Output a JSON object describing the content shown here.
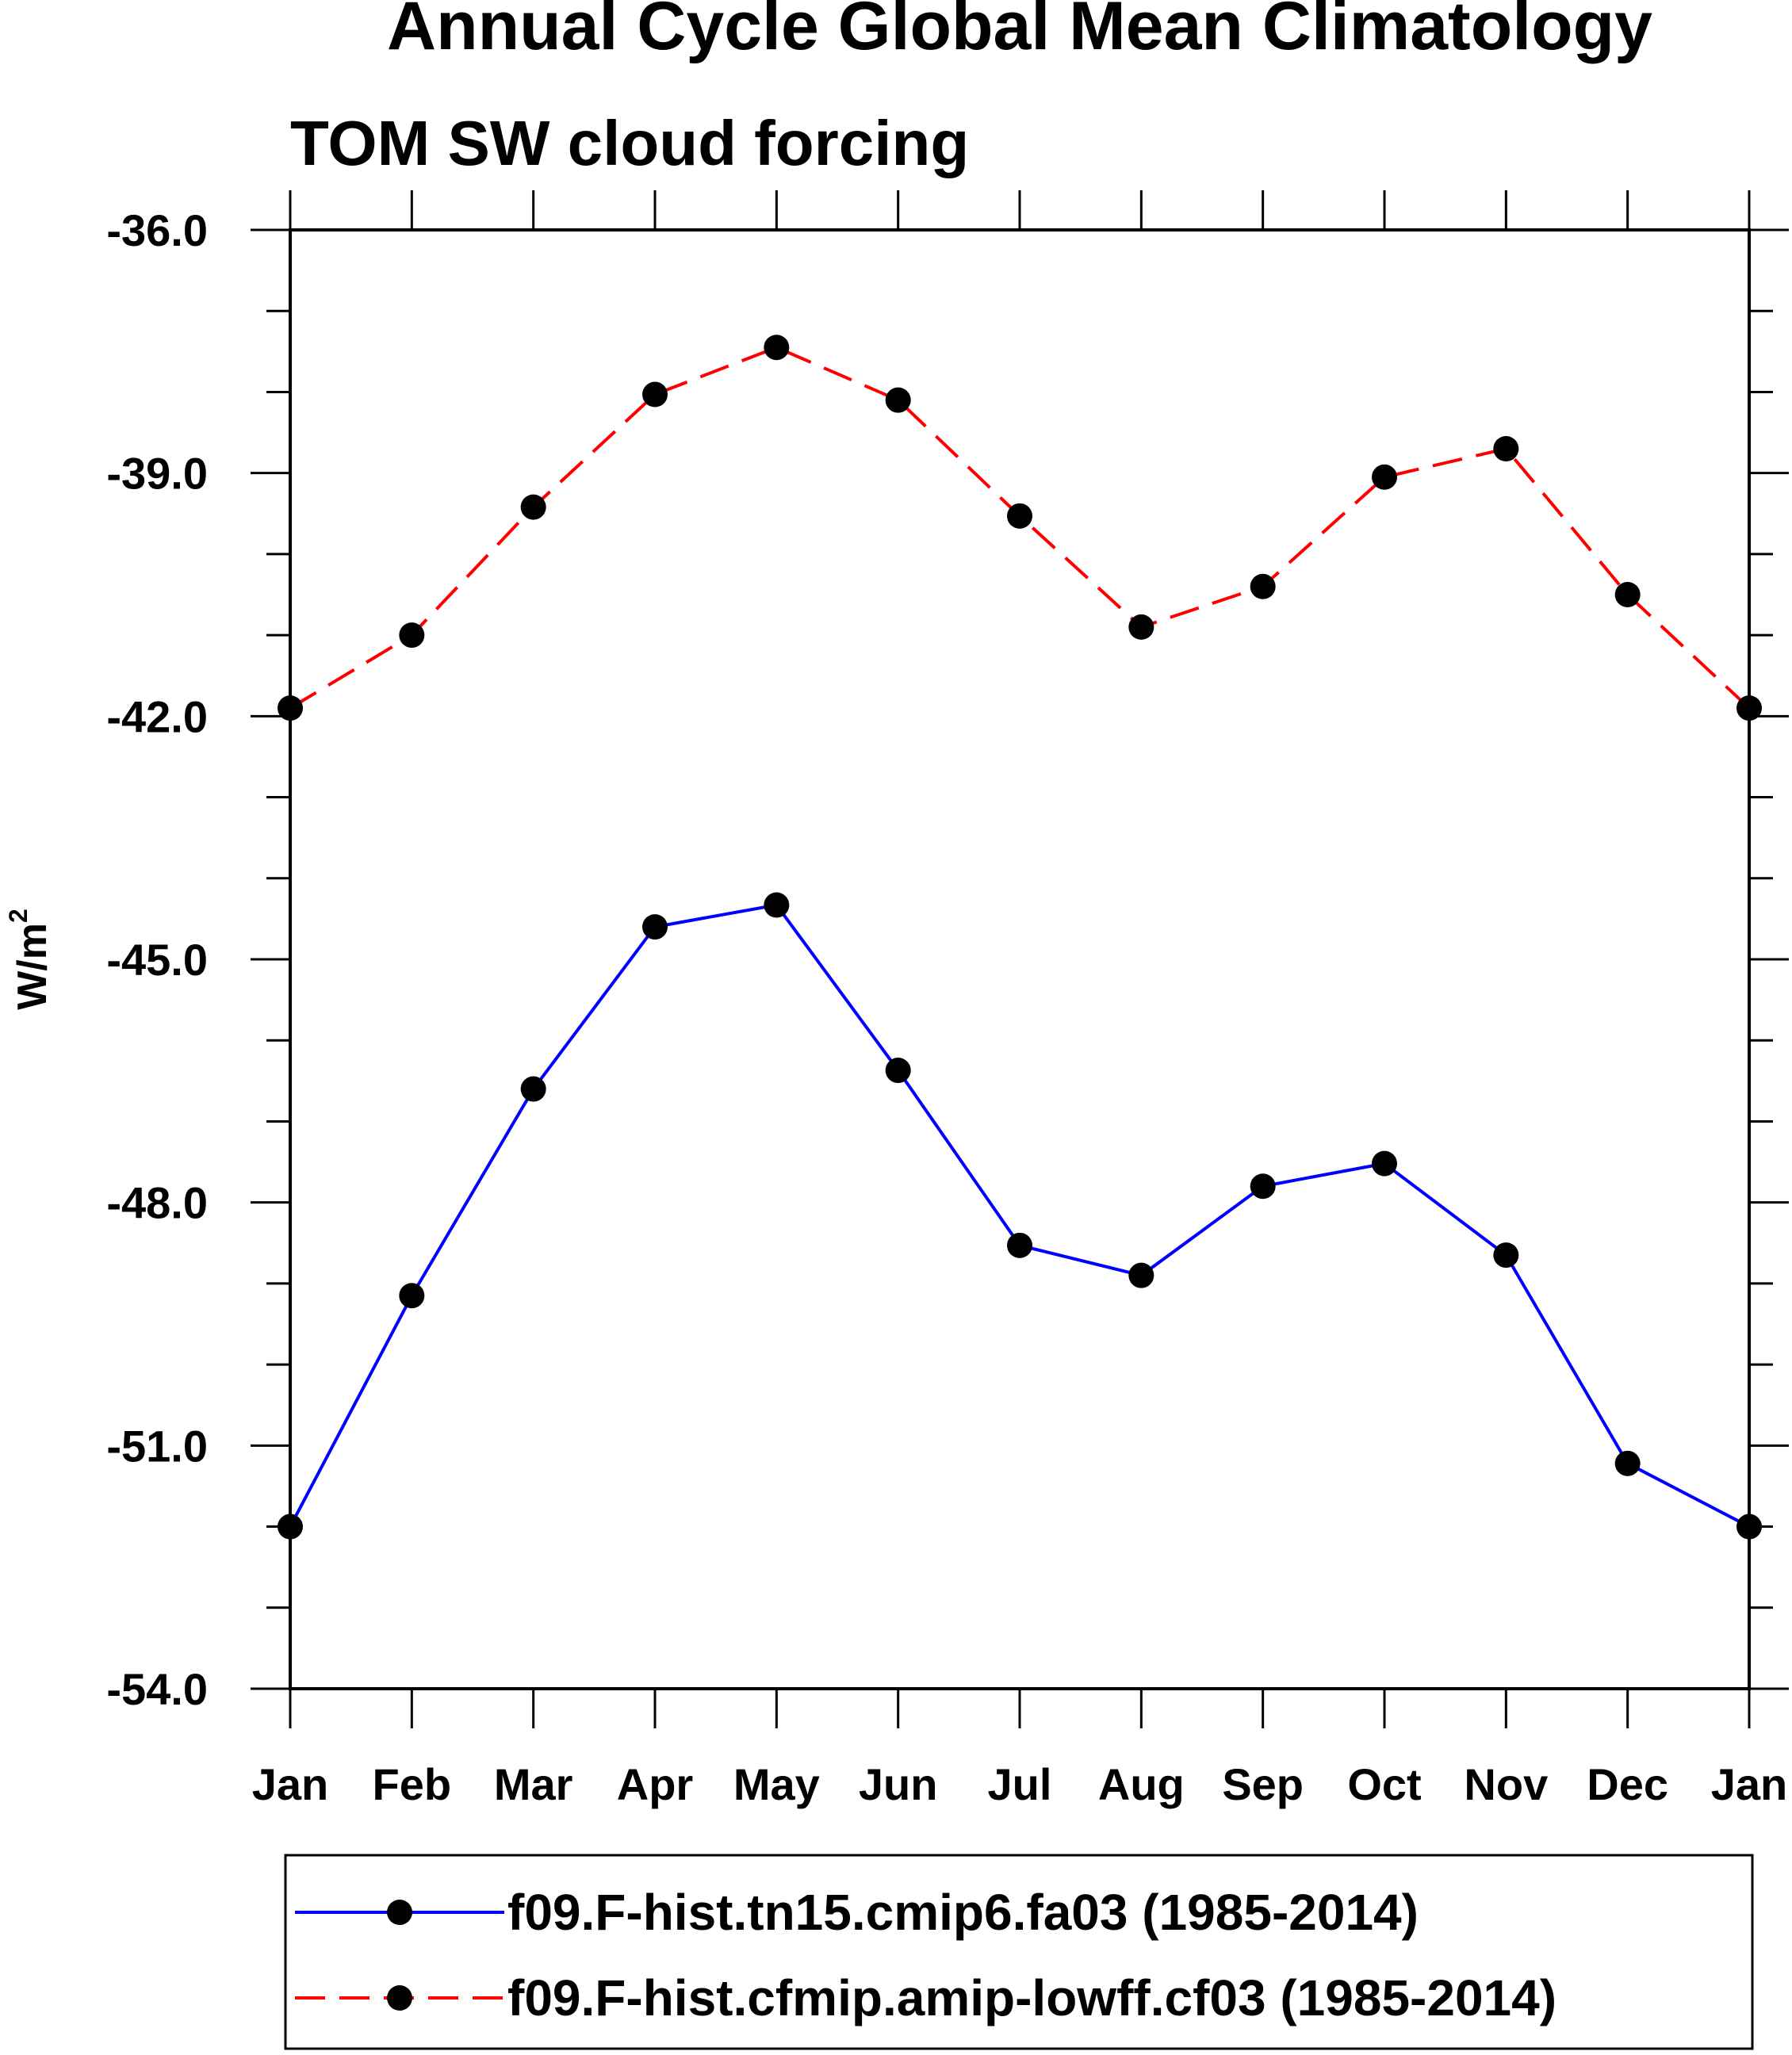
{
  "chart_data": {
    "type": "line",
    "title": "Annual Cycle Global Mean Climatology",
    "subtitle": "TOM SW cloud forcing",
    "ylabel_base": "W/m",
    "ylabel_superscript": "2",
    "xlabel": "",
    "categories": [
      "Jan",
      "Feb",
      "Mar",
      "Apr",
      "May",
      "Jun",
      "Jul",
      "Aug",
      "Sep",
      "Oct",
      "Nov",
      "Dec",
      "Jan"
    ],
    "ylim": [
      -54.0,
      -36.0
    ],
    "yticks": [
      -54.0,
      -51.0,
      -48.0,
      -45.0,
      -42.0,
      -39.0,
      -36.0
    ],
    "ytick_labels": [
      "-54.0",
      "-51.0",
      "-48.0",
      "-45.0",
      "-42.0",
      "-39.0",
      "-36.0"
    ],
    "y_minor_step": 1.0,
    "grid": false,
    "legend_position": "bottom",
    "series": [
      {
        "name": "f09.F-hist.tn15.cmip6.fa03 (1985-2014)",
        "color": "#0000ff",
        "dash": "solid",
        "marker": "filled-circle",
        "values": [
          -52.0,
          -49.15,
          -46.6,
          -44.6,
          -44.33,
          -46.37,
          -48.53,
          -48.9,
          -47.8,
          -47.52,
          -48.65,
          -51.22,
          -52.0
        ]
      },
      {
        "name": "f09.F-hist.cfmip.amip-lowff.cf03 (1985-2014)",
        "color": "#ff0000",
        "dash": "dashed",
        "marker": "filled-circle",
        "values": [
          -41.9,
          -41.0,
          -39.42,
          -38.03,
          -37.45,
          -38.1,
          -39.53,
          -40.9,
          -40.4,
          -39.05,
          -38.7,
          -40.5,
          -41.9
        ]
      }
    ]
  }
}
